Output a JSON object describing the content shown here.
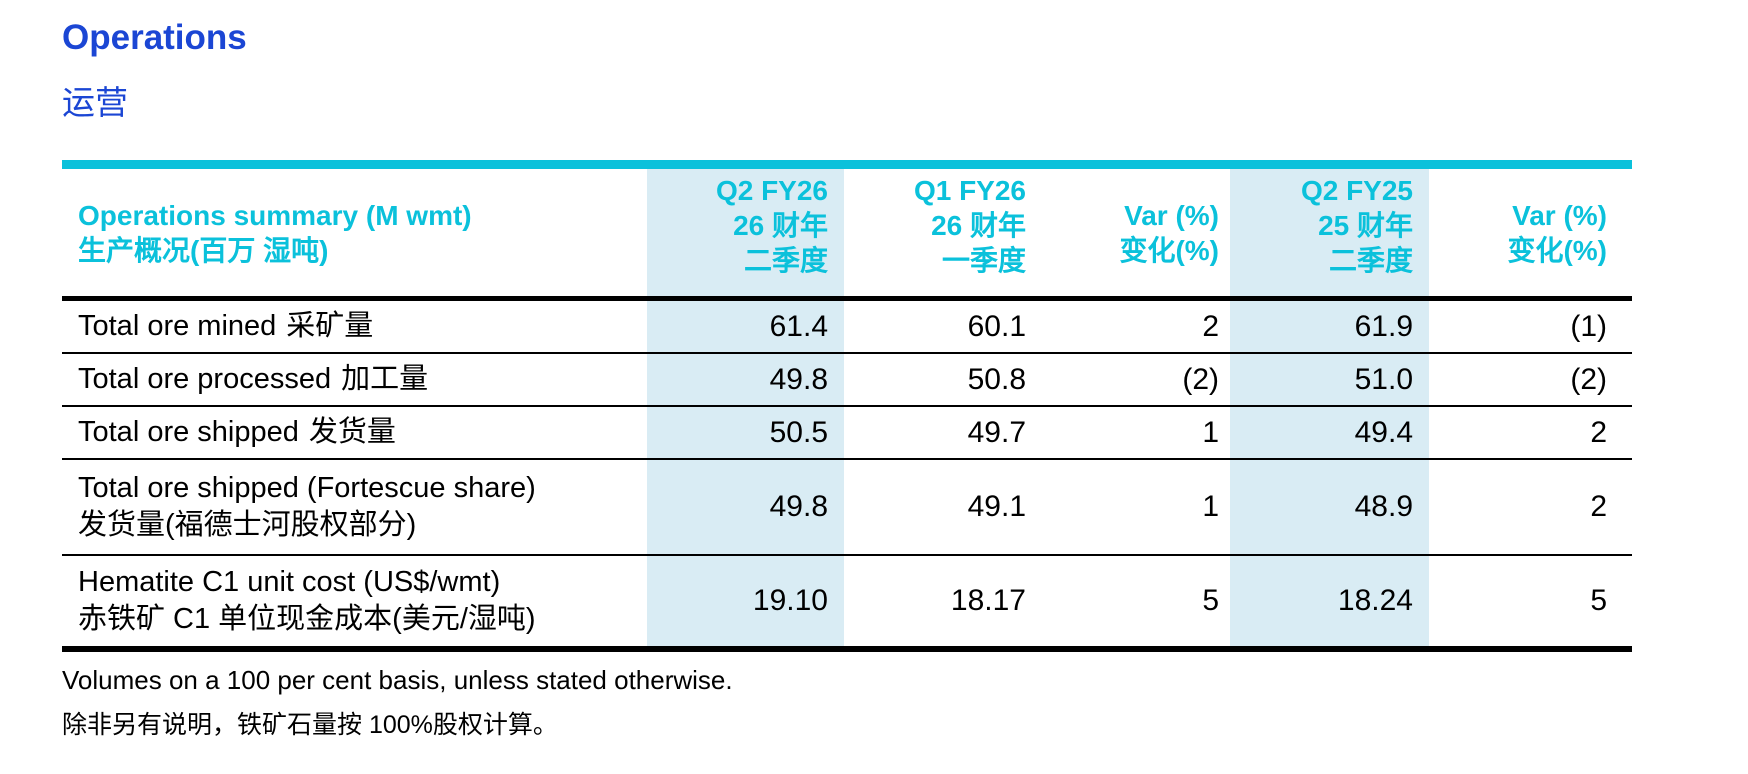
{
  "title": {
    "en": "Operations",
    "zh": "运营"
  },
  "colors": {
    "title_blue": "#1B46D4",
    "accent_cyan": "#0BC1DB",
    "highlight_blue": "#D9ECF4",
    "line_black": "#000000"
  },
  "table": {
    "header": {
      "label_en": "Operations summary (M wmt)",
      "label_zh": "生产概况(百万 湿吨)",
      "columns": [
        {
          "l1": "Q2 FY26",
          "l2": "26 财年",
          "l3": "二季度"
        },
        {
          "l1": "Q1 FY26",
          "l2": "26 财年",
          "l3": "一季度"
        },
        {
          "l1": "Var (%)",
          "l2": "变化(%)"
        },
        {
          "l1": "Q2 FY25",
          "l2": "25 财年",
          "l3": "二季度"
        },
        {
          "l1": "Var (%)",
          "l2": "变化(%)"
        }
      ]
    },
    "rows": [
      {
        "label_en": "Total ore mined",
        "label_zh": "采矿量",
        "values": [
          "61.4",
          "60.1",
          "2",
          "61.9",
          "(1)"
        ]
      },
      {
        "label_en": "Total ore processed",
        "label_zh": "加工量",
        "values": [
          "49.8",
          "50.8",
          "(2)",
          "51.0",
          "(2)"
        ]
      },
      {
        "label_en": "Total ore shipped",
        "label_zh": "发货量",
        "values": [
          "50.5",
          "49.7",
          "1",
          "49.4",
          "2"
        ]
      },
      {
        "label_en": "Total ore shipped (Fortescue share)",
        "label_zh": "发货量(福德士河股权部分)",
        "values": [
          "49.8",
          "49.1",
          "1",
          "48.9",
          "2"
        ]
      },
      {
        "label_en": "Hematite C1 unit cost (US$/wmt)",
        "label_zh": "赤铁矿 C1 单位现金成本(美元/湿吨)",
        "values": [
          "19.10",
          "18.17",
          "5",
          "18.24",
          "5"
        ]
      }
    ],
    "footnotes": {
      "en": "Volumes on a 100 per cent basis, unless stated otherwise.",
      "zh": "除非另有说明，铁矿石量按 100%股权计算。"
    }
  }
}
